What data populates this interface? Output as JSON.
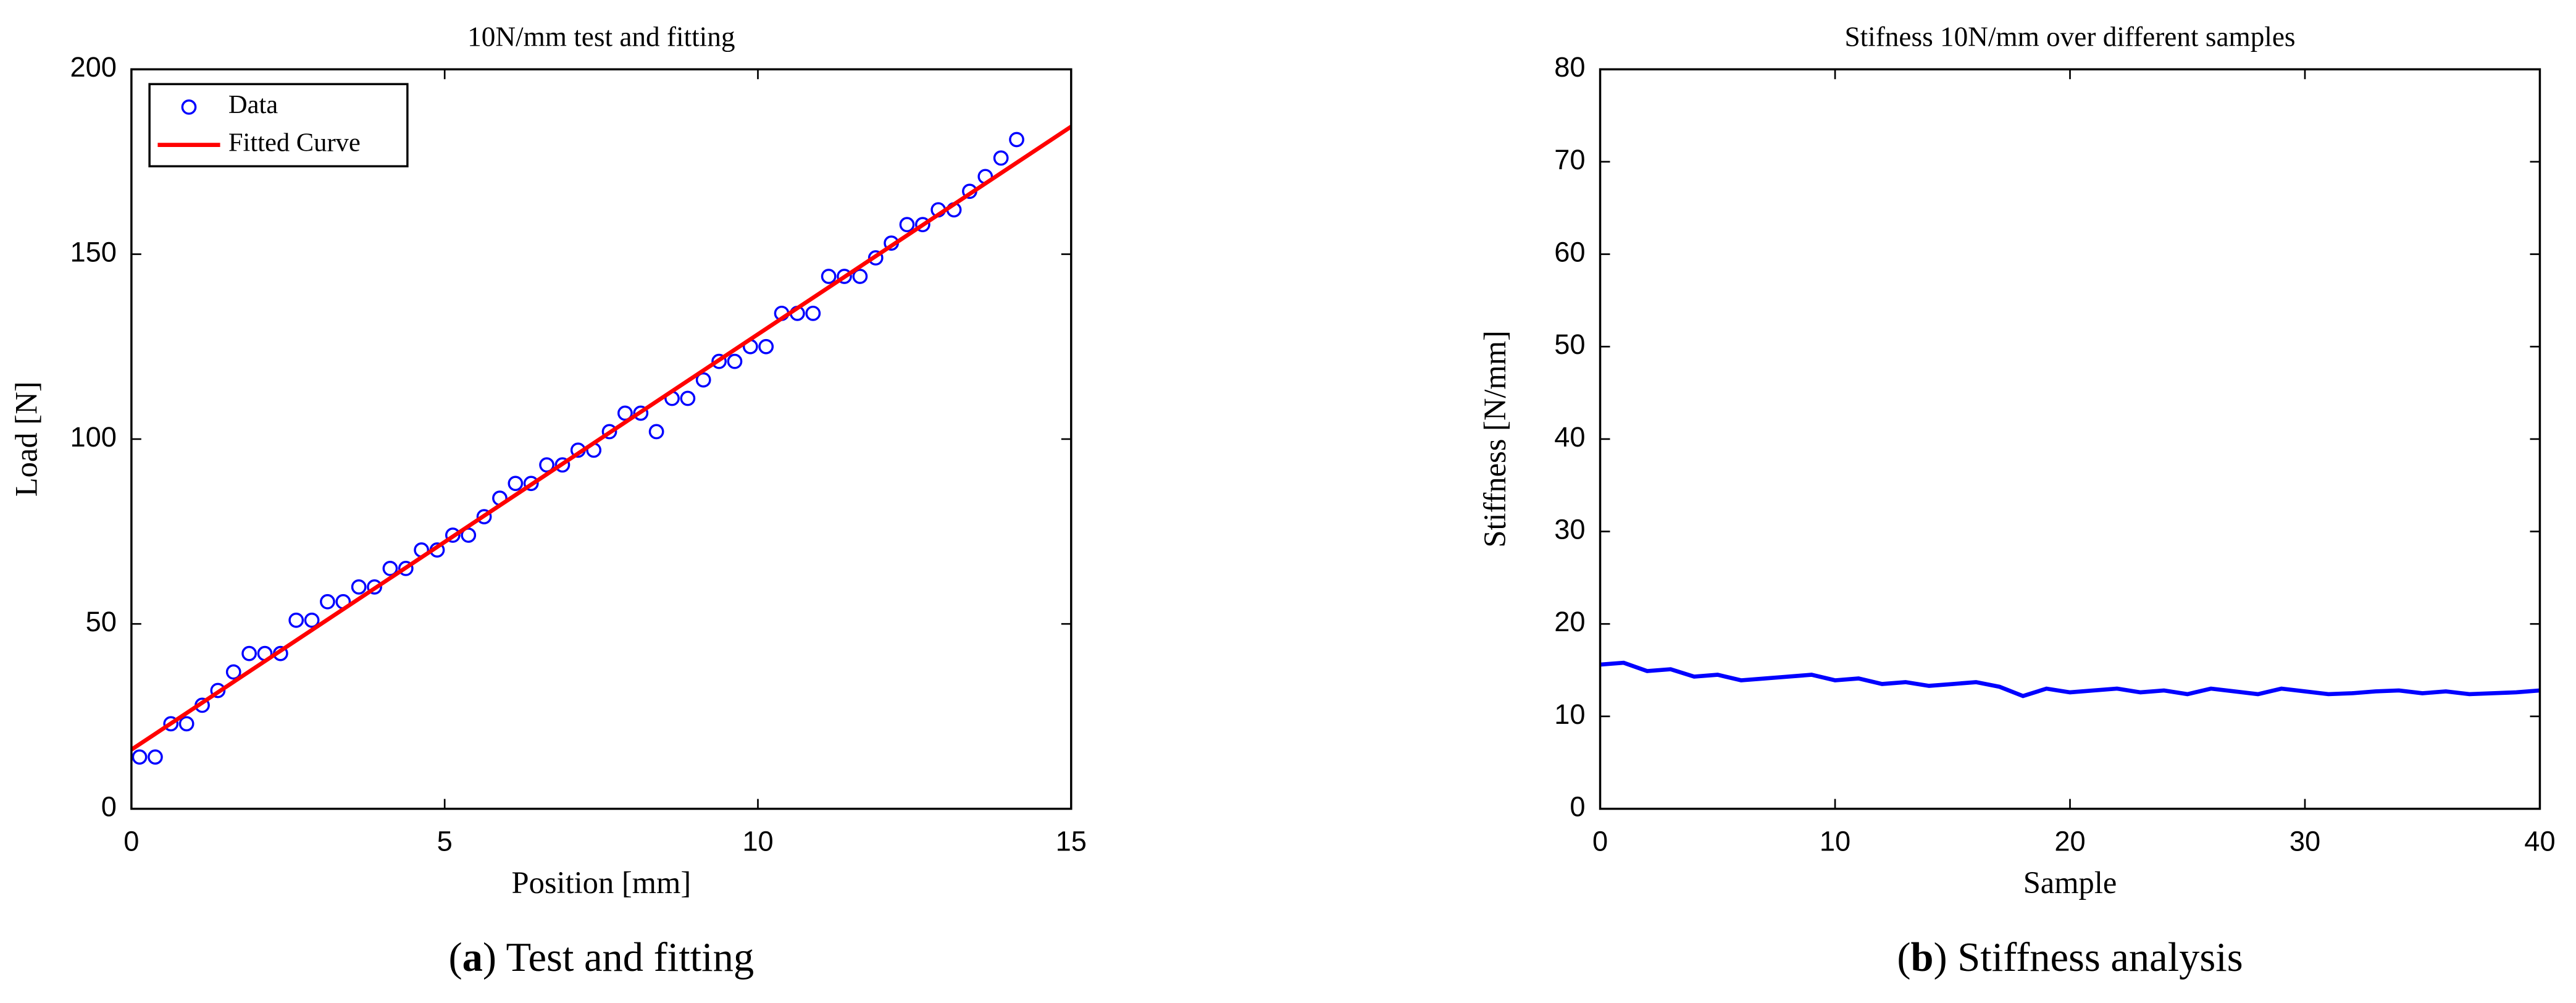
{
  "chart_data": [
    {
      "type": "scatter",
      "title": "10N/mm test and fitting",
      "x_label": "Position [mm]",
      "y_label": "Load [N]",
      "caption": {
        "prefix": "(",
        "label": "a",
        "text": ") Test and fitting"
      },
      "xlim": [
        0,
        15
      ],
      "ylim": [
        0,
        200
      ],
      "xticks": [
        0,
        5,
        10,
        15
      ],
      "yticks": [
        0,
        50,
        100,
        150,
        200
      ],
      "legend": "top-left",
      "series": [
        {
          "name": "Data",
          "color": "#0000ff",
          "style": "markers",
          "x": [
            0.13,
            0.38,
            0.63,
            0.88,
            1.13,
            1.38,
            1.63,
            1.88,
            2.13,
            2.38,
            2.63,
            2.88,
            3.13,
            3.38,
            3.63,
            3.88,
            4.13,
            4.38,
            4.63,
            4.88,
            5.13,
            5.38,
            5.63,
            5.88,
            6.13,
            6.38,
            6.63,
            6.88,
            7.13,
            7.38,
            7.63,
            7.88,
            8.13,
            8.38,
            8.63,
            8.88,
            9.13,
            9.38,
            9.63,
            9.88,
            10.13,
            10.38,
            10.63,
            10.88,
            11.13,
            11.38,
            11.63,
            11.88,
            12.13,
            12.38,
            12.63,
            12.88,
            13.13,
            13.38,
            13.63,
            13.88,
            14.13
          ],
          "values": [
            14,
            14,
            23,
            23,
            28,
            32,
            37,
            42,
            42,
            42,
            51,
            51,
            56,
            56,
            60,
            60,
            65,
            65,
            70,
            70,
            74,
            74,
            79,
            84,
            88,
            88,
            93,
            93,
            97,
            97,
            102,
            107,
            107,
            102,
            111,
            111,
            116,
            121,
            121,
            125,
            125,
            134,
            134,
            134,
            144,
            144,
            144,
            149,
            153,
            158,
            158,
            162,
            162,
            167,
            171,
            176,
            181
          ]
        },
        {
          "name": "Fitted Curve",
          "color": "#ff0000",
          "style": "line",
          "x": [
            0,
            15
          ],
          "values": [
            16,
            184.5
          ]
        }
      ]
    },
    {
      "type": "line",
      "title": "Stifness 10N/mm over different samples",
      "x_label": "Sample",
      "y_label": "Stiffness [N/mm]",
      "caption": {
        "prefix": "(",
        "label": "b",
        "text": ") Stiffness analysis"
      },
      "xlim": [
        0,
        40
      ],
      "ylim": [
        0,
        80
      ],
      "xticks": [
        0,
        10,
        20,
        30,
        40
      ],
      "yticks": [
        0,
        10,
        20,
        30,
        40,
        50,
        60,
        70,
        80
      ],
      "x": [
        0,
        1,
        2,
        3,
        4,
        5,
        6,
        7,
        8,
        9,
        10,
        11,
        12,
        13,
        14,
        15,
        16,
        17,
        18,
        19,
        20,
        21,
        22,
        23,
        24,
        25,
        26,
        27,
        28,
        29,
        30,
        31,
        32,
        33,
        34,
        35,
        36,
        37,
        38,
        39,
        40
      ],
      "series": [
        {
          "color": "#0000ff",
          "style": "line",
          "values": [
            15.6,
            15.8,
            14.9,
            15.1,
            14.3,
            14.5,
            13.9,
            14.1,
            14.3,
            14.5,
            13.9,
            14.1,
            13.5,
            13.7,
            13.3,
            13.5,
            13.7,
            13.2,
            12.2,
            13.0,
            12.6,
            12.8,
            13.0,
            12.6,
            12.8,
            12.4,
            13.0,
            12.7,
            12.4,
            13.0,
            12.7,
            12.4,
            12.5,
            12.7,
            12.8,
            12.5,
            12.7,
            12.4,
            12.5,
            12.6,
            12.8
          ]
        }
      ]
    }
  ]
}
